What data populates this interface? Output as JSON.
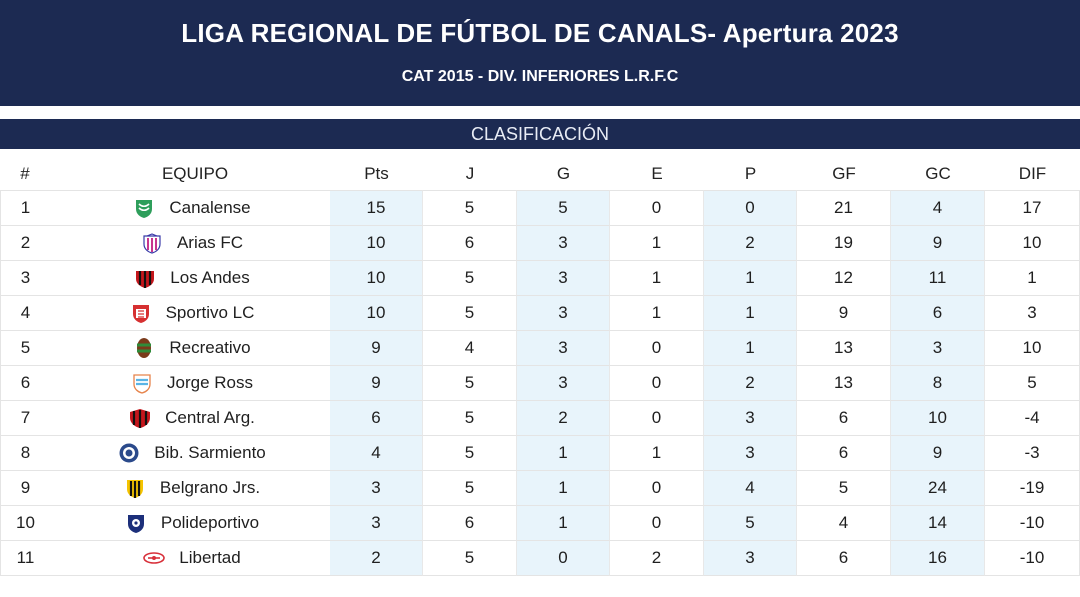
{
  "header": {
    "title": "LIGA REGIONAL DE FÚTBOL DE CANALS- Apertura 2023",
    "subtitle": "CAT 2015 - DIV. INFERIORES L.R.F.C"
  },
  "section_title": "CLASIFICACIÓN",
  "columns": {
    "pos": "#",
    "team": "EQUIPO",
    "pts": "Pts",
    "j": "J",
    "g": "G",
    "e": "E",
    "p": "P",
    "gf": "GF",
    "gc": "GC",
    "dif": "DIF"
  },
  "colors": {
    "header_bg": "#1c2a52",
    "shade": "#e8f4fb"
  },
  "rows": [
    {
      "pos": "1",
      "team": "Canalense",
      "pts": "15",
      "j": "5",
      "g": "5",
      "e": "0",
      "p": "0",
      "gf": "21",
      "gc": "4",
      "dif": "17",
      "crest": "canalense-crest-icon"
    },
    {
      "pos": "2",
      "team": "Arias FC",
      "pts": "10",
      "j": "6",
      "g": "3",
      "e": "1",
      "p": "2",
      "gf": "19",
      "gc": "9",
      "dif": "10",
      "crest": "arias-crest-icon"
    },
    {
      "pos": "3",
      "team": "Los Andes",
      "pts": "10",
      "j": "5",
      "g": "3",
      "e": "1",
      "p": "1",
      "gf": "12",
      "gc": "11",
      "dif": "1",
      "crest": "los-andes-crest-icon"
    },
    {
      "pos": "4",
      "team": "Sportivo LC",
      "pts": "10",
      "j": "5",
      "g": "3",
      "e": "1",
      "p": "1",
      "gf": "9",
      "gc": "6",
      "dif": "3",
      "crest": "sportivo-crest-icon"
    },
    {
      "pos": "5",
      "team": "Recreativo",
      "pts": "9",
      "j": "4",
      "g": "3",
      "e": "0",
      "p": "1",
      "gf": "13",
      "gc": "3",
      "dif": "10",
      "crest": "recreativo-crest-icon"
    },
    {
      "pos": "6",
      "team": "Jorge Ross",
      "pts": "9",
      "j": "5",
      "g": "3",
      "e": "0",
      "p": "2",
      "gf": "13",
      "gc": "8",
      "dif": "5",
      "crest": "jorge-ross-crest-icon"
    },
    {
      "pos": "7",
      "team": "Central Arg.",
      "pts": "6",
      "j": "5",
      "g": "2",
      "e": "0",
      "p": "3",
      "gf": "6",
      "gc": "10",
      "dif": "-4",
      "crest": "central-arg-crest-icon"
    },
    {
      "pos": "8",
      "team": "Bib. Sarmiento",
      "pts": "4",
      "j": "5",
      "g": "1",
      "e": "1",
      "p": "3",
      "gf": "6",
      "gc": "9",
      "dif": "-3",
      "crest": "sarmiento-crest-icon"
    },
    {
      "pos": "9",
      "team": "Belgrano Jrs.",
      "pts": "3",
      "j": "5",
      "g": "1",
      "e": "0",
      "p": "4",
      "gf": "5",
      "gc": "24",
      "dif": "-19",
      "crest": "belgrano-crest-icon"
    },
    {
      "pos": "10",
      "team": "Polideportivo",
      "pts": "3",
      "j": "6",
      "g": "1",
      "e": "0",
      "p": "5",
      "gf": "4",
      "gc": "14",
      "dif": "-10",
      "crest": "polideportivo-crest-icon"
    },
    {
      "pos": "11",
      "team": "Libertad",
      "pts": "2",
      "j": "5",
      "g": "0",
      "e": "2",
      "p": "3",
      "gf": "6",
      "gc": "16",
      "dif": "-10",
      "crest": "libertad-crest-icon"
    }
  ]
}
